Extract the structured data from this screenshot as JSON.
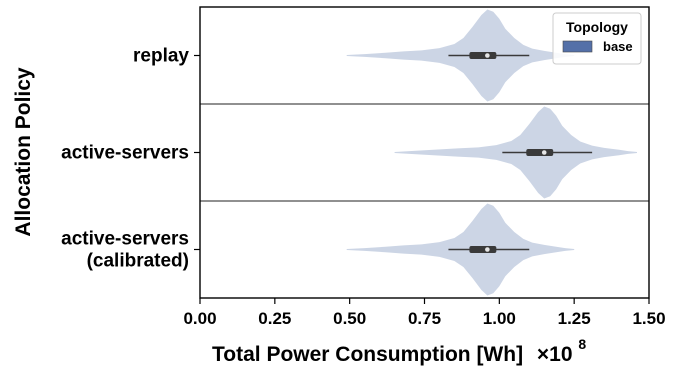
{
  "chart_data": {
    "type": "violin",
    "orientation": "horizontal",
    "xlabel": "Total Power Consumption [Wh]",
    "x_exponent_label": "×10",
    "x_exponent_power": "8",
    "ylabel": "Allocation Policy",
    "xlim": [
      0.0,
      1.5
    ],
    "xticks": [
      "0.00",
      "0.25",
      "0.50",
      "0.75",
      "1.00",
      "1.25",
      "1.50"
    ],
    "xtick_values": [
      0.0,
      0.25,
      0.5,
      0.75,
      1.0,
      1.25,
      1.5
    ],
    "categories": [
      {
        "lines": [
          "replay"
        ]
      },
      {
        "lines": [
          "active-servers"
        ]
      },
      {
        "lines": [
          "active-servers",
          "(calibrated)"
        ]
      }
    ],
    "legend": {
      "title": "Topology",
      "entries": [
        {
          "name": "base",
          "color": "#5470a8"
        }
      ],
      "placement": "top-right"
    },
    "violin_color": "#ccd5e5",
    "box_color": "#3a3a3a",
    "series": [
      {
        "category": "replay",
        "whisker": [
          0.83,
          1.1
        ],
        "quartiles": [
          0.9,
          0.99
        ],
        "median": 0.96,
        "density": [
          [
            0.49,
            0.01
          ],
          [
            0.55,
            0.03
          ],
          [
            0.62,
            0.06
          ],
          [
            0.68,
            0.09
          ],
          [
            0.74,
            0.11
          ],
          [
            0.8,
            0.16
          ],
          [
            0.85,
            0.25
          ],
          [
            0.88,
            0.38
          ],
          [
            0.91,
            0.62
          ],
          [
            0.94,
            0.88
          ],
          [
            0.96,
            1.0
          ],
          [
            0.98,
            0.95
          ],
          [
            1.0,
            0.8
          ],
          [
            1.02,
            0.58
          ],
          [
            1.05,
            0.38
          ],
          [
            1.08,
            0.23
          ],
          [
            1.11,
            0.15
          ],
          [
            1.15,
            0.1
          ],
          [
            1.19,
            0.06
          ],
          [
            1.22,
            0.03
          ],
          [
            1.25,
            0.01
          ]
        ]
      },
      {
        "category": "active-servers",
        "whisker": [
          1.01,
          1.31
        ],
        "quartiles": [
          1.09,
          1.18
        ],
        "median": 1.15,
        "density": [
          [
            0.65,
            0.01
          ],
          [
            0.7,
            0.03
          ],
          [
            0.78,
            0.06
          ],
          [
            0.86,
            0.09
          ],
          [
            0.93,
            0.11
          ],
          [
            0.99,
            0.16
          ],
          [
            1.04,
            0.25
          ],
          [
            1.07,
            0.38
          ],
          [
            1.1,
            0.62
          ],
          [
            1.13,
            0.88
          ],
          [
            1.15,
            1.0
          ],
          [
            1.17,
            0.95
          ],
          [
            1.19,
            0.8
          ],
          [
            1.21,
            0.58
          ],
          [
            1.24,
            0.38
          ],
          [
            1.27,
            0.24
          ],
          [
            1.31,
            0.15
          ],
          [
            1.35,
            0.1
          ],
          [
            1.4,
            0.06
          ],
          [
            1.43,
            0.03
          ],
          [
            1.46,
            0.01
          ]
        ]
      },
      {
        "category": "active-servers (calibrated)",
        "whisker": [
          0.83,
          1.1
        ],
        "quartiles": [
          0.9,
          0.99
        ],
        "median": 0.96,
        "density": [
          [
            0.49,
            0.01
          ],
          [
            0.55,
            0.03
          ],
          [
            0.62,
            0.06
          ],
          [
            0.68,
            0.09
          ],
          [
            0.74,
            0.11
          ],
          [
            0.8,
            0.16
          ],
          [
            0.85,
            0.25
          ],
          [
            0.88,
            0.38
          ],
          [
            0.91,
            0.62
          ],
          [
            0.94,
            0.88
          ],
          [
            0.96,
            1.0
          ],
          [
            0.98,
            0.95
          ],
          [
            1.0,
            0.8
          ],
          [
            1.02,
            0.58
          ],
          [
            1.05,
            0.38
          ],
          [
            1.08,
            0.23
          ],
          [
            1.11,
            0.15
          ],
          [
            1.15,
            0.1
          ],
          [
            1.19,
            0.06
          ],
          [
            1.22,
            0.03
          ],
          [
            1.25,
            0.01
          ]
        ]
      }
    ]
  }
}
